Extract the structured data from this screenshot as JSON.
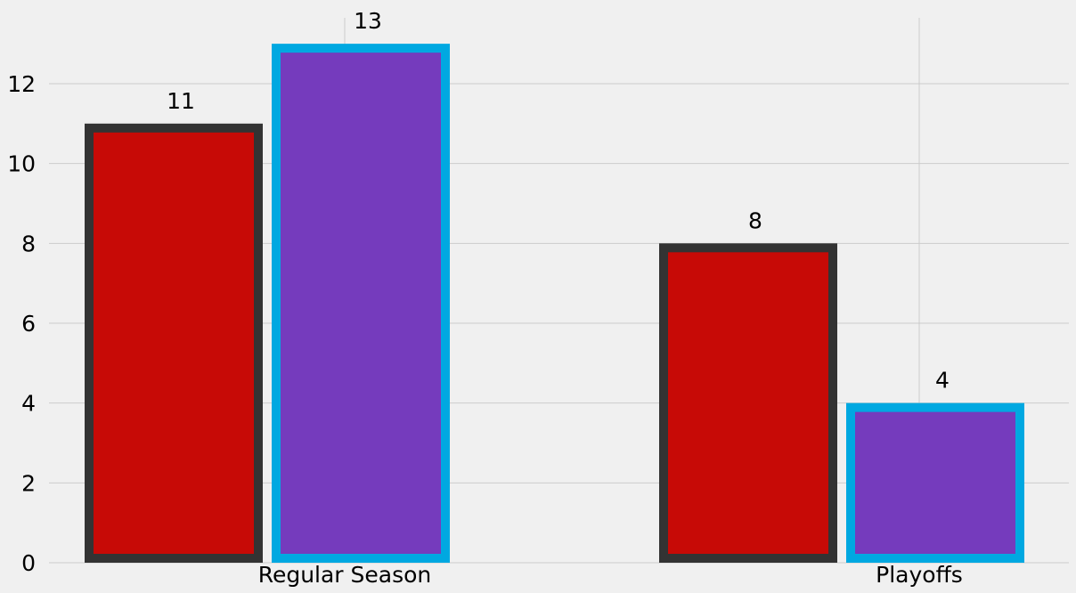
{
  "chart_data": {
    "type": "bar",
    "title": "",
    "xlabel": "",
    "ylabel": "",
    "categories": [
      "Regular Season",
      "Playoffs"
    ],
    "series": [
      {
        "values": [
          11,
          8
        ],
        "fill_color": "#c70a06",
        "edge_color": "#333333"
      },
      {
        "values": [
          13,
          4
        ],
        "fill_color": "#753bbd",
        "edge_color": "#00a8e1"
      }
    ],
    "ylim": [
      0,
      13.65
    ],
    "yticks": [
      0,
      2,
      4,
      6,
      8,
      10,
      12
    ],
    "grid": true,
    "data_labels": true,
    "legend": "none",
    "background_color": "#f0f0f0",
    "grid_color": "#cbcbcb"
  }
}
